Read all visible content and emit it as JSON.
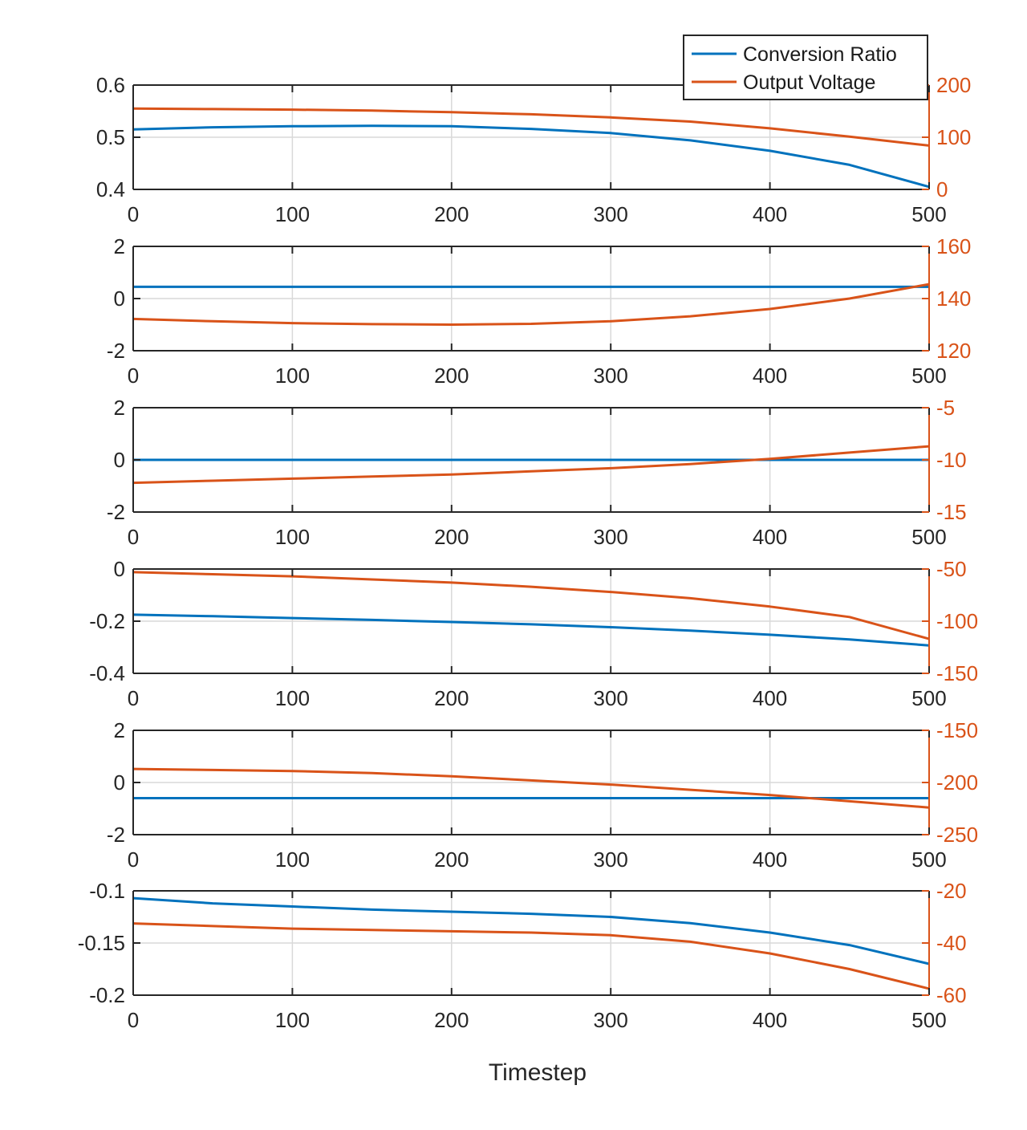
{
  "colors": {
    "left_axis": "#0072BD",
    "right_axis": "#D95319",
    "axis_text_left": "#262626",
    "grid": "#d9d9d9",
    "box": "#262626"
  },
  "chart_data": {
    "type": "line",
    "layout": "6 stacked subplots with dual y-axes (yyaxis)",
    "xlabel": "Timestep",
    "legend": {
      "placement": "top-right",
      "entries": [
        "Conversion Ratio",
        "Output Voltage"
      ]
    },
    "grid": true,
    "subplots": [
      {
        "xlim": [
          0,
          500
        ],
        "xticks": [
          0,
          100,
          200,
          300,
          400,
          500
        ],
        "ylim_left": [
          0.4,
          0.6
        ],
        "yticks_left": [
          "0.4",
          "0.5",
          "0.6"
        ],
        "ylim_right": [
          0,
          200
        ],
        "yticks_right": [
          "0",
          "100",
          "200"
        ],
        "series": [
          {
            "name": "Conversion Ratio",
            "axis": "left",
            "x": [
              0,
              50,
              100,
              150,
              200,
              250,
              300,
              350,
              400,
              450,
              500
            ],
            "y": [
              0.515,
              0.519,
              0.521,
              0.522,
              0.521,
              0.516,
              0.508,
              0.494,
              0.474,
              0.447,
              0.405
            ]
          },
          {
            "name": "Output Voltage",
            "axis": "right",
            "x": [
              0,
              50,
              100,
              150,
              200,
              250,
              300,
              350,
              400,
              450,
              500
            ],
            "y": [
              155,
              154,
              153,
              151,
              148,
              144,
              138,
              130,
              117,
              101,
              84
            ]
          }
        ]
      },
      {
        "xlim": [
          0,
          500
        ],
        "xticks": [
          0,
          100,
          200,
          300,
          400,
          500
        ],
        "ylim_left": [
          -2,
          2
        ],
        "yticks_left": [
          "-2",
          "0",
          "2"
        ],
        "ylim_right": [
          120,
          160
        ],
        "yticks_right": [
          "120",
          "140",
          "160"
        ],
        "series": [
          {
            "name": "Conversion Ratio",
            "axis": "left",
            "x": [
              0,
              500
            ],
            "y": [
              0.45,
              0.45
            ]
          },
          {
            "name": "Output Voltage",
            "axis": "right",
            "x": [
              0,
              50,
              100,
              150,
              200,
              250,
              300,
              350,
              400,
              450,
              500
            ],
            "y": [
              132.2,
              131.3,
              130.6,
              130.2,
              130.0,
              130.3,
              131.3,
              133.2,
              136.0,
              140.0,
              145.5
            ]
          }
        ]
      },
      {
        "xlim": [
          0,
          500
        ],
        "xticks": [
          0,
          100,
          200,
          300,
          400,
          500
        ],
        "ylim_left": [
          -2,
          2
        ],
        "yticks_left": [
          "-2",
          "0",
          "2"
        ],
        "ylim_right": [
          -15,
          -5
        ],
        "yticks_right": [
          "-15",
          "-10",
          "-5"
        ],
        "series": [
          {
            "name": "Conversion Ratio",
            "axis": "left",
            "x": [
              0,
              500
            ],
            "y": [
              0.0,
              0.0
            ]
          },
          {
            "name": "Output Voltage",
            "axis": "right",
            "x": [
              0,
              50,
              100,
              150,
              200,
              250,
              300,
              350,
              400,
              450,
              500
            ],
            "y": [
              -12.2,
              -12.0,
              -11.8,
              -11.6,
              -11.4,
              -11.1,
              -10.8,
              -10.4,
              -9.9,
              -9.3,
              -8.7
            ]
          }
        ]
      },
      {
        "xlim": [
          0,
          500
        ],
        "xticks": [
          0,
          100,
          200,
          300,
          400,
          500
        ],
        "ylim_left": [
          -0.4,
          0
        ],
        "yticks_left": [
          "-0.4",
          "-0.2",
          "0"
        ],
        "ylim_right": [
          -150,
          -50
        ],
        "yticks_right": [
          "-150",
          "-100",
          "-50"
        ],
        "series": [
          {
            "name": "Conversion Ratio",
            "axis": "left",
            "x": [
              0,
              50,
              100,
              150,
              200,
              250,
              300,
              350,
              400,
              450,
              500
            ],
            "y": [
              -0.175,
              -0.181,
              -0.188,
              -0.195,
              -0.203,
              -0.212,
              -0.223,
              -0.236,
              -0.252,
              -0.27,
              -0.293
            ]
          },
          {
            "name": "Output Voltage",
            "axis": "right",
            "x": [
              0,
              50,
              100,
              150,
              200,
              250,
              300,
              350,
              400,
              450,
              500
            ],
            "y": [
              -53,
              -55,
              -57,
              -60,
              -63,
              -67,
              -72,
              -78,
              -86,
              -96,
              -117
            ]
          }
        ]
      },
      {
        "xlim": [
          0,
          500
        ],
        "xticks": [
          0,
          100,
          200,
          300,
          400,
          500
        ],
        "ylim_left": [
          -2,
          2
        ],
        "yticks_left": [
          "-2",
          "0",
          "2"
        ],
        "ylim_right": [
          -250,
          -150
        ],
        "yticks_right": [
          "-250",
          "-200",
          "-150"
        ],
        "series": [
          {
            "name": "Conversion Ratio",
            "axis": "left",
            "x": [
              0,
              500
            ],
            "y": [
              -0.6,
              -0.6
            ]
          },
          {
            "name": "Output Voltage",
            "axis": "right",
            "x": [
              0,
              50,
              100,
              150,
              200,
              250,
              300,
              350,
              400,
              450,
              500
            ],
            "y": [
              -187,
              -188,
              -189,
              -191,
              -194,
              -198,
              -202,
              -207,
              -212,
              -218,
              -224
            ]
          }
        ]
      },
      {
        "xlim": [
          0,
          500
        ],
        "xticks": [
          0,
          100,
          200,
          300,
          400,
          500
        ],
        "ylim_left": [
          -0.2,
          -0.1
        ],
        "yticks_left": [
          "-0.2",
          "-0.15",
          "-0.1"
        ],
        "ylim_right": [
          -60,
          -20
        ],
        "yticks_right": [
          "-60",
          "-40",
          "-20"
        ],
        "series": [
          {
            "name": "Conversion Ratio",
            "axis": "left",
            "x": [
              0,
              50,
              100,
              150,
              200,
              250,
              300,
              350,
              400,
              450,
              500
            ],
            "y": [
              -0.107,
              -0.112,
              -0.115,
              -0.118,
              -0.12,
              -0.122,
              -0.125,
              -0.131,
              -0.14,
              -0.152,
              -0.17
            ]
          },
          {
            "name": "Output Voltage",
            "axis": "right",
            "x": [
              0,
              50,
              100,
              150,
              200,
              250,
              300,
              350,
              400,
              450,
              500
            ],
            "y": [
              -32.5,
              -33.5,
              -34.5,
              -35.0,
              -35.5,
              -36.0,
              -37.0,
              -39.5,
              -44.0,
              -50.0,
              -57.5
            ]
          }
        ]
      }
    ]
  }
}
